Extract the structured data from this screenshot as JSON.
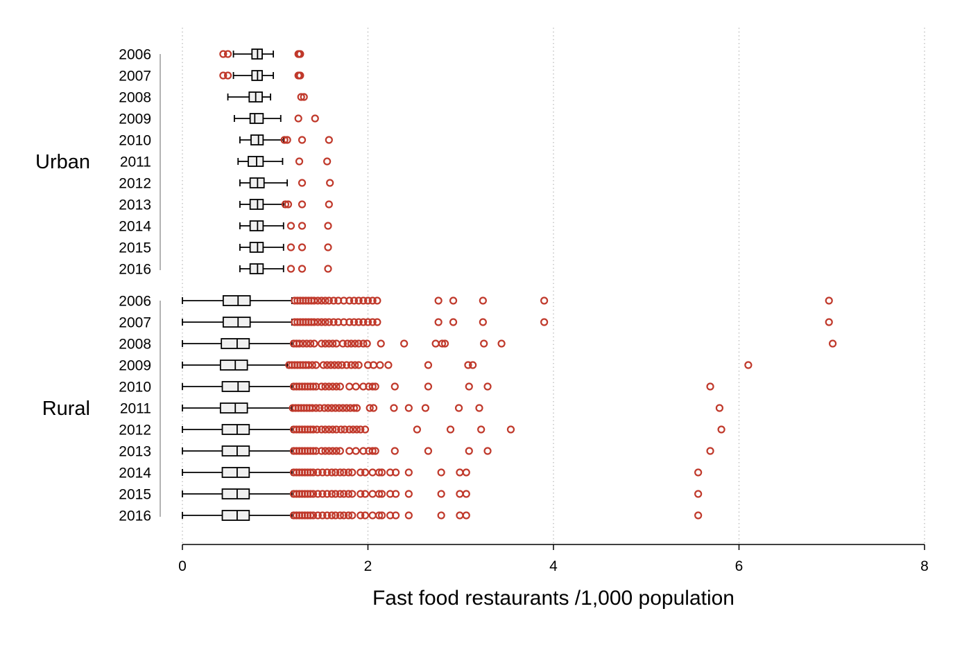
{
  "chart_data": {
    "type": "boxplot",
    "orientation": "horizontal",
    "xlabel": "Fast food restaurants /1,000 population",
    "xlim": [
      0,
      8
    ],
    "xticks": [
      "0",
      "2",
      "4",
      "6",
      "8"
    ],
    "grid": "vertical dotted",
    "colors": {
      "box": "#000000",
      "outlier": "#c0392b",
      "box_fill": "#f0f0f0"
    },
    "groups": [
      {
        "name": "Urban",
        "series": [
          {
            "year": "2006",
            "whisker_low": 0.55,
            "q1": 0.75,
            "median": 0.81,
            "q3": 0.86,
            "whisker_high": 0.98,
            "outliers": [
              0.44,
              0.49,
              1.25,
              1.26,
              1.27
            ]
          },
          {
            "year": "2007",
            "whisker_low": 0.55,
            "q1": 0.75,
            "median": 0.81,
            "q3": 0.86,
            "whisker_high": 0.98,
            "outliers": [
              0.44,
              0.49,
              1.25,
              1.26,
              1.27
            ]
          },
          {
            "year": "2008",
            "whisker_low": 0.49,
            "q1": 0.72,
            "median": 0.79,
            "q3": 0.86,
            "whisker_high": 0.95,
            "outliers": [
              1.28,
              1.31
            ]
          },
          {
            "year": "2009",
            "whisker_low": 0.56,
            "q1": 0.73,
            "median": 0.78,
            "q3": 0.87,
            "whisker_high": 1.06,
            "outliers": [
              1.25,
              1.43
            ]
          },
          {
            "year": "2010",
            "whisker_low": 0.62,
            "q1": 0.74,
            "median": 0.82,
            "q3": 0.87,
            "whisker_high": 1.09,
            "outliers": [
              1.1,
              1.13,
              1.29,
              1.58
            ]
          },
          {
            "year": "2011",
            "whisker_low": 0.6,
            "q1": 0.71,
            "median": 0.8,
            "q3": 0.87,
            "whisker_high": 1.08,
            "outliers": [
              1.26,
              1.56
            ]
          },
          {
            "year": "2012",
            "whisker_low": 0.62,
            "q1": 0.73,
            "median": 0.81,
            "q3": 0.88,
            "whisker_high": 1.13,
            "outliers": [
              1.29,
              1.59
            ]
          },
          {
            "year": "2013",
            "whisker_low": 0.62,
            "q1": 0.73,
            "median": 0.81,
            "q3": 0.87,
            "whisker_high": 1.09,
            "outliers": [
              1.11,
              1.14,
              1.29,
              1.58
            ]
          },
          {
            "year": "2014",
            "whisker_low": 0.62,
            "q1": 0.73,
            "median": 0.81,
            "q3": 0.87,
            "whisker_high": 1.09,
            "outliers": [
              1.17,
              1.29,
              1.57
            ]
          },
          {
            "year": "2015",
            "whisker_low": 0.62,
            "q1": 0.73,
            "median": 0.81,
            "q3": 0.87,
            "whisker_high": 1.09,
            "outliers": [
              1.17,
              1.29,
              1.57
            ]
          },
          {
            "year": "2016",
            "whisker_low": 0.62,
            "q1": 0.73,
            "median": 0.81,
            "q3": 0.87,
            "whisker_high": 1.09,
            "outliers": [
              1.17,
              1.29,
              1.57
            ]
          }
        ]
      },
      {
        "name": "Rural",
        "series": [
          {
            "year": "2006",
            "whisker_low": 0.0,
            "q1": 0.44,
            "median": 0.6,
            "q3": 0.73,
            "whisker_high": 1.18,
            "outliers": [
              1.21,
              1.24,
              1.27,
              1.3,
              1.33,
              1.36,
              1.39,
              1.42,
              1.46,
              1.5,
              1.54,
              1.58,
              1.63,
              1.68,
              1.74,
              1.8,
              1.85,
              1.9,
              1.95,
              2.0,
              2.05,
              2.1,
              2.76,
              2.92,
              3.24,
              3.9,
              6.97
            ]
          },
          {
            "year": "2007",
            "whisker_low": 0.0,
            "q1": 0.44,
            "median": 0.6,
            "q3": 0.73,
            "whisker_high": 1.18,
            "outliers": [
              1.21,
              1.24,
              1.27,
              1.3,
              1.33,
              1.36,
              1.39,
              1.42,
              1.46,
              1.5,
              1.54,
              1.58,
              1.63,
              1.68,
              1.74,
              1.8,
              1.85,
              1.9,
              1.95,
              2.0,
              2.05,
              2.1,
              2.76,
              2.92,
              3.24,
              3.9,
              6.97
            ]
          },
          {
            "year": "2008",
            "whisker_low": 0.0,
            "q1": 0.42,
            "median": 0.59,
            "q3": 0.72,
            "whisker_high": 1.18,
            "outliers": [
              1.2,
              1.23,
              1.26,
              1.3,
              1.34,
              1.38,
              1.42,
              1.5,
              1.54,
              1.58,
              1.62,
              1.66,
              1.73,
              1.78,
              1.82,
              1.86,
              1.9,
              1.95,
              1.99,
              2.14,
              2.39,
              2.73,
              2.8,
              2.83,
              3.25,
              3.44,
              7.01
            ]
          },
          {
            "year": "2009",
            "whisker_low": 0.0,
            "q1": 0.41,
            "median": 0.57,
            "q3": 0.7,
            "whisker_high": 1.13,
            "outliers": [
              1.15,
              1.18,
              1.21,
              1.24,
              1.27,
              1.3,
              1.33,
              1.36,
              1.4,
              1.44,
              1.52,
              1.56,
              1.6,
              1.64,
              1.68,
              1.72,
              1.77,
              1.82,
              1.86,
              1.9,
              2.0,
              2.06,
              2.13,
              2.22,
              2.65,
              3.08,
              3.13,
              6.1
            ]
          },
          {
            "year": "2010",
            "whisker_low": 0.0,
            "q1": 0.43,
            "median": 0.6,
            "q3": 0.72,
            "whisker_high": 1.18,
            "outliers": [
              1.2,
              1.23,
              1.26,
              1.29,
              1.32,
              1.35,
              1.38,
              1.41,
              1.44,
              1.5,
              1.54,
              1.58,
              1.62,
              1.66,
              1.7,
              1.8,
              1.87,
              1.95,
              2.01,
              2.05,
              2.08,
              2.29,
              2.65,
              3.09,
              3.29,
              5.69
            ]
          },
          {
            "year": "2011",
            "whisker_low": 0.0,
            "q1": 0.41,
            "median": 0.57,
            "q3": 0.7,
            "whisker_high": 1.18,
            "outliers": [
              1.19,
              1.22,
              1.25,
              1.28,
              1.31,
              1.34,
              1.37,
              1.4,
              1.44,
              1.48,
              1.53,
              1.57,
              1.61,
              1.65,
              1.69,
              1.73,
              1.77,
              1.81,
              1.85,
              1.88,
              2.02,
              2.06,
              2.28,
              2.44,
              2.62,
              2.98,
              3.2,
              5.79
            ]
          },
          {
            "year": "2012",
            "whisker_low": 0.0,
            "q1": 0.43,
            "median": 0.59,
            "q3": 0.72,
            "whisker_high": 1.18,
            "outliers": [
              1.2,
              1.23,
              1.26,
              1.29,
              1.32,
              1.35,
              1.38,
              1.41,
              1.45,
              1.5,
              1.54,
              1.58,
              1.62,
              1.66,
              1.71,
              1.75,
              1.8,
              1.84,
              1.88,
              1.92,
              1.97,
              2.53,
              2.89,
              3.22,
              3.54,
              5.81
            ]
          },
          {
            "year": "2013",
            "whisker_low": 0.0,
            "q1": 0.43,
            "median": 0.59,
            "q3": 0.72,
            "whisker_high": 1.18,
            "outliers": [
              1.2,
              1.23,
              1.26,
              1.29,
              1.32,
              1.35,
              1.38,
              1.41,
              1.44,
              1.5,
              1.54,
              1.58,
              1.62,
              1.66,
              1.7,
              1.8,
              1.87,
              1.95,
              2.01,
              2.05,
              2.08,
              2.29,
              2.65,
              3.09,
              3.29,
              5.69
            ]
          },
          {
            "year": "2014",
            "whisker_low": 0.0,
            "q1": 0.43,
            "median": 0.59,
            "q3": 0.72,
            "whisker_high": 1.18,
            "outliers": [
              1.2,
              1.23,
              1.26,
              1.29,
              1.32,
              1.35,
              1.38,
              1.41,
              1.46,
              1.51,
              1.56,
              1.61,
              1.65,
              1.7,
              1.74,
              1.79,
              1.83,
              1.92,
              1.97,
              2.05,
              2.12,
              2.15,
              2.24,
              2.3,
              2.44,
              2.79,
              2.99,
              3.06,
              5.56
            ]
          },
          {
            "year": "2015",
            "whisker_low": 0.0,
            "q1": 0.43,
            "median": 0.59,
            "q3": 0.72,
            "whisker_high": 1.18,
            "outliers": [
              1.2,
              1.23,
              1.26,
              1.29,
              1.32,
              1.35,
              1.38,
              1.41,
              1.46,
              1.51,
              1.56,
              1.61,
              1.65,
              1.7,
              1.74,
              1.79,
              1.83,
              1.92,
              1.97,
              2.05,
              2.12,
              2.15,
              2.24,
              2.3,
              2.44,
              2.79,
              2.99,
              3.06,
              5.56
            ]
          },
          {
            "year": "2016",
            "whisker_low": 0.0,
            "q1": 0.43,
            "median": 0.59,
            "q3": 0.72,
            "whisker_high": 1.18,
            "outliers": [
              1.2,
              1.23,
              1.26,
              1.29,
              1.32,
              1.35,
              1.38,
              1.41,
              1.46,
              1.51,
              1.56,
              1.61,
              1.65,
              1.7,
              1.74,
              1.79,
              1.83,
              1.92,
              1.97,
              2.05,
              2.12,
              2.15,
              2.24,
              2.3,
              2.44,
              2.79,
              2.99,
              3.06,
              5.56
            ]
          }
        ]
      }
    ]
  }
}
